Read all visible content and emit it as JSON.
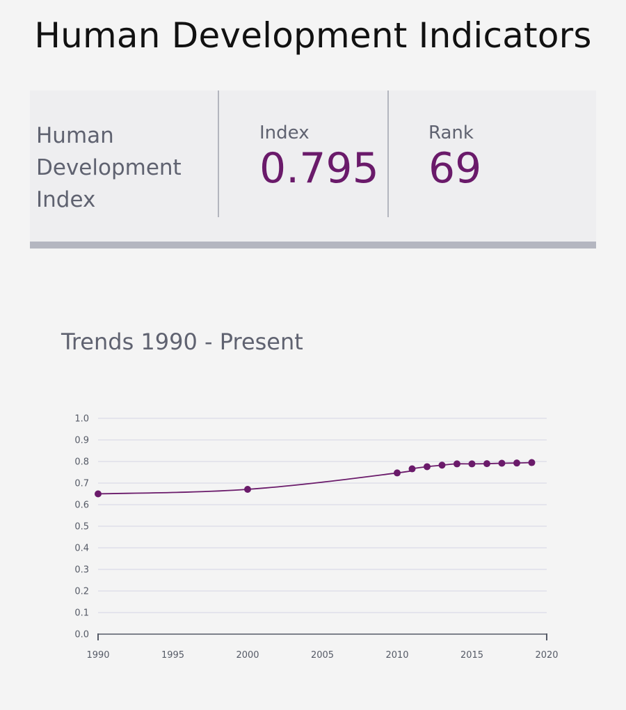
{
  "page": {
    "title": "Human Development Indicators"
  },
  "hdi_card": {
    "label_lines": [
      "Human",
      "Development",
      "Index"
    ],
    "index_label": "Index",
    "index_value": "0.795",
    "rank_label": "Rank",
    "rank_value": "69"
  },
  "trends": {
    "heading": "Trends 1990 - Present"
  },
  "colors": {
    "accent": "#6a1a6a",
    "line": "#6a1a6a",
    "grid": "#d3d3e3",
    "card_bg": "#eeeef0",
    "card_border": "#b4b6c0"
  },
  "chart_data": {
    "type": "line",
    "title": "",
    "xlabel": "",
    "ylabel": "",
    "xlim": [
      1990,
      2020
    ],
    "ylim": [
      0,
      1
    ],
    "x_ticks": [
      "1990",
      "1995",
      "2000",
      "2005",
      "2010",
      "2015",
      "2020"
    ],
    "y_ticks": [
      "0.0",
      "0.1",
      "0.2",
      "0.3",
      "0.4",
      "0.5",
      "0.6",
      "0.7",
      "0.8",
      "0.9",
      "1.0"
    ],
    "grid": true,
    "legend": "none",
    "series": [
      {
        "x": [
          1990,
          2000,
          2010,
          2011,
          2012,
          2013,
          2014,
          2015,
          2016,
          2017,
          2018,
          2019
        ],
        "y": [
          0.65,
          0.671,
          0.747,
          0.766,
          0.776,
          0.783,
          0.789,
          0.789,
          0.79,
          0.792,
          0.793,
          0.795
        ]
      }
    ]
  }
}
